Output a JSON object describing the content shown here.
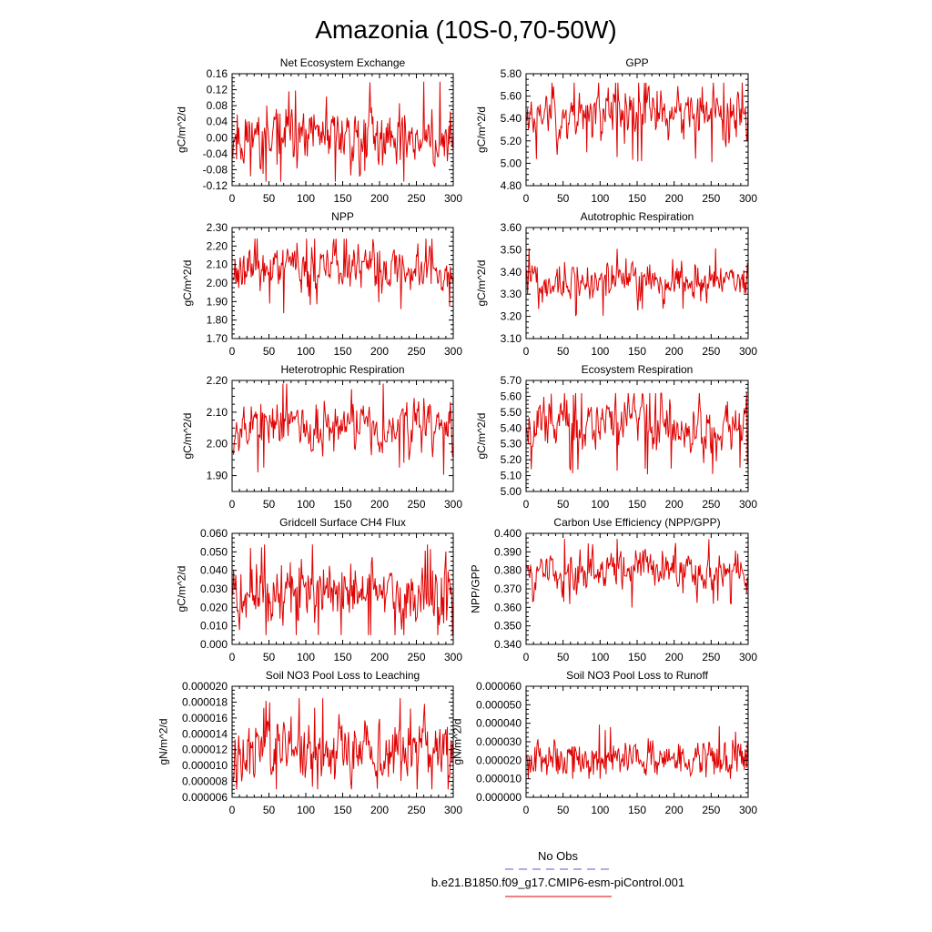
{
  "title": "Amazonia (10S-0,70-50W)",
  "legend": {
    "entries": [
      {
        "label": "No Obs",
        "color": "#5b5bd6",
        "dash": true
      },
      {
        "label": "b.e21.B1850.f09_g17.CMIP6-esm-piControl.001",
        "color": "#e00000",
        "dash": false
      }
    ]
  },
  "series_color": "#e00000",
  "chart_data": [
    {
      "type": "line",
      "title": "Net Ecosystem Exchange",
      "ylabel": "gC/m^2/d",
      "xlim": [
        0,
        300
      ],
      "ylim": [
        -0.12,
        0.16
      ],
      "xticks": [
        "0",
        "50",
        "100",
        "150",
        "200",
        "250",
        "300"
      ],
      "yticks": [
        "-0.12",
        "-0.08",
        "-0.04",
        "0.00",
        "0.04",
        "0.08",
        "0.12",
        "0.16"
      ],
      "series": [
        {
          "n": 300,
          "mean": 0.0,
          "amp": 0.045,
          "min": -0.11,
          "max": 0.14,
          "seed": 11
        }
      ]
    },
    {
      "type": "line",
      "title": "GPP",
      "ylabel": "gC/m^2/d",
      "xlim": [
        0,
        300
      ],
      "ylim": [
        4.8,
        5.8
      ],
      "xticks": [
        "0",
        "50",
        "100",
        "150",
        "200",
        "250",
        "300"
      ],
      "yticks": [
        "4.80",
        "5.00",
        "5.20",
        "5.40",
        "5.60",
        "5.80"
      ],
      "series": [
        {
          "n": 300,
          "mean": 5.45,
          "amp": 0.13,
          "min": 4.97,
          "max": 5.72,
          "seed": 23
        }
      ]
    },
    {
      "type": "line",
      "title": "NPP",
      "ylabel": "gC/m^2/d",
      "xlim": [
        0,
        300
      ],
      "ylim": [
        1.7,
        2.3
      ],
      "xticks": [
        "0",
        "50",
        "100",
        "150",
        "200",
        "250",
        "300"
      ],
      "yticks": [
        "1.70",
        "1.80",
        "1.90",
        "2.00",
        "2.10",
        "2.20",
        "2.30"
      ],
      "series": [
        {
          "n": 300,
          "mean": 2.08,
          "amp": 0.07,
          "min": 1.74,
          "max": 2.24,
          "seed": 37
        }
      ]
    },
    {
      "type": "line",
      "title": "Autotrophic Respiration",
      "ylabel": "gC/m^2/d",
      "xlim": [
        0,
        300
      ],
      "ylim": [
        3.1,
        3.6
      ],
      "xticks": [
        "0",
        "50",
        "100",
        "150",
        "200",
        "250",
        "300"
      ],
      "yticks": [
        "3.10",
        "3.20",
        "3.30",
        "3.40",
        "3.50",
        "3.60"
      ],
      "series": [
        {
          "n": 300,
          "mean": 3.36,
          "amp": 0.045,
          "min": 3.2,
          "max": 3.52,
          "seed": 41
        }
      ]
    },
    {
      "type": "line",
      "title": "Heterotrophic Respiration",
      "ylabel": "gC/m^2/d",
      "xlim": [
        0,
        300
      ],
      "ylim": [
        1.85,
        2.2
      ],
      "xticks": [
        "0",
        "50",
        "100",
        "150",
        "200",
        "250",
        "300"
      ],
      "yticks": [
        "1.90",
        "2.00",
        "2.10",
        "2.20"
      ],
      "series": [
        {
          "n": 300,
          "mean": 2.06,
          "amp": 0.045,
          "min": 1.86,
          "max": 2.19,
          "seed": 53
        }
      ]
    },
    {
      "type": "line",
      "title": "Ecosystem Respiration",
      "ylabel": "gC/m^2/d",
      "xlim": [
        0,
        300
      ],
      "ylim": [
        5.0,
        5.7
      ],
      "xticks": [
        "0",
        "50",
        "100",
        "150",
        "200",
        "250",
        "300"
      ],
      "yticks": [
        "5.00",
        "5.10",
        "5.20",
        "5.30",
        "5.40",
        "5.50",
        "5.60",
        "5.70"
      ],
      "series": [
        {
          "n": 300,
          "mean": 5.43,
          "amp": 0.09,
          "min": 5.08,
          "max": 5.62,
          "seed": 67
        }
      ]
    },
    {
      "type": "line",
      "title": "Gridcell Surface CH4 Flux",
      "ylabel": "gC/m^2/d",
      "xlim": [
        0,
        300
      ],
      "ylim": [
        0.0,
        0.06
      ],
      "xticks": [
        "0",
        "50",
        "100",
        "150",
        "200",
        "250",
        "300"
      ],
      "yticks": [
        "0.000",
        "0.010",
        "0.020",
        "0.030",
        "0.040",
        "0.050",
        "0.060"
      ],
      "series": [
        {
          "n": 300,
          "mean": 0.028,
          "amp": 0.009,
          "min": 0.005,
          "max": 0.054,
          "seed": 71
        }
      ]
    },
    {
      "type": "line",
      "title": "Carbon Use Efficiency (NPP/GPP)",
      "ylabel": "NPP/GPP",
      "xlim": [
        0,
        300
      ],
      "ylim": [
        0.34,
        0.4
      ],
      "xticks": [
        "0",
        "50",
        "100",
        "150",
        "200",
        "250",
        "300"
      ],
      "yticks": [
        "0.340",
        "0.350",
        "0.360",
        "0.370",
        "0.380",
        "0.390",
        "0.400"
      ],
      "series": [
        {
          "n": 300,
          "mean": 0.38,
          "amp": 0.006,
          "min": 0.344,
          "max": 0.397,
          "seed": 83
        }
      ]
    },
    {
      "type": "line",
      "title": "Soil NO3 Pool Loss to Leaching",
      "ylabel": "gN/m^2/d",
      "xlim": [
        0,
        300
      ],
      "ylim": [
        6e-06,
        2e-05
      ],
      "xticks": [
        "0",
        "50",
        "100",
        "150",
        "200",
        "250",
        "300"
      ],
      "yticks": [
        "0.000006",
        "0.000008",
        "0.000010",
        "0.000012",
        "0.000014",
        "0.000016",
        "0.000018",
        "0.000020"
      ],
      "series": [
        {
          "n": 300,
          "mean": 1.18e-05,
          "amp": 2.2e-06,
          "min": 7e-06,
          "max": 1.85e-05,
          "seed": 97
        }
      ]
    },
    {
      "type": "line",
      "title": "Soil NO3 Pool Loss to Runoff",
      "ylabel": "gN/m^2/d",
      "xlim": [
        0,
        300
      ],
      "ylim": [
        0.0,
        6e-05
      ],
      "xticks": [
        "0",
        "50",
        "100",
        "150",
        "200",
        "250",
        "300"
      ],
      "yticks": [
        "0.000000",
        "0.000010",
        "0.000020",
        "0.000030",
        "0.000040",
        "0.000050",
        "0.000060"
      ],
      "series": [
        {
          "n": 300,
          "mean": 2.1e-05,
          "amp": 5.5e-06,
          "min": 1e-05,
          "max": 5e-05,
          "seed": 101
        }
      ]
    }
  ]
}
